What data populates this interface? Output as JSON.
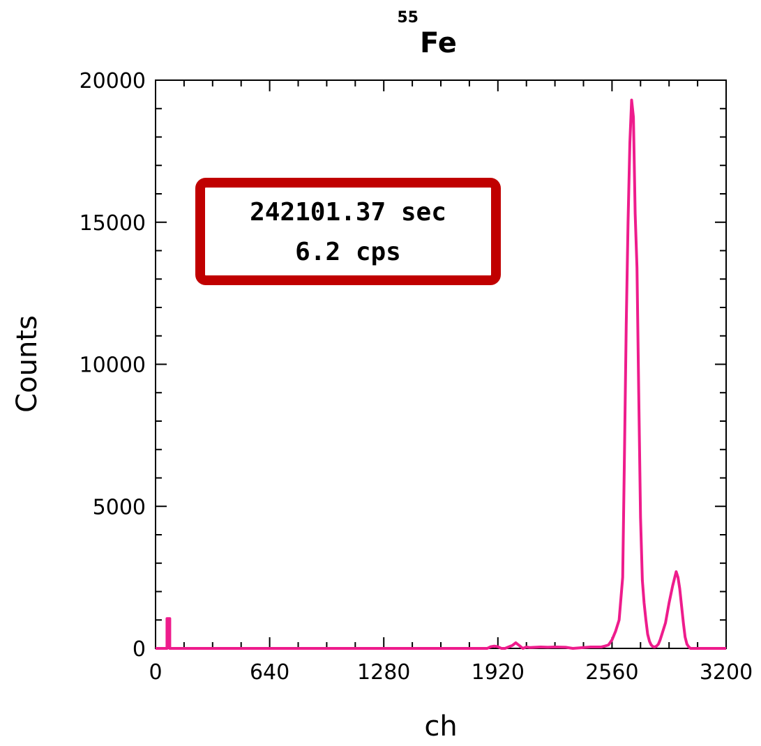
{
  "chart_data": {
    "type": "line",
    "title": {
      "superscript": "55",
      "main": "Fe"
    },
    "xlabel": "ch",
    "ylabel": "Counts",
    "xlim": [
      0,
      3200
    ],
    "ylim": [
      0,
      20000
    ],
    "x_ticks": [
      0,
      640,
      1280,
      1920,
      2560,
      3200
    ],
    "y_ticks": [
      0,
      5000,
      10000,
      15000,
      20000
    ],
    "x_tick_labels": [
      "0",
      "640",
      "1280",
      "1920",
      "2560",
      "3200"
    ],
    "y_tick_labels": [
      "0",
      "5000",
      "10000",
      "15000",
      "20000"
    ],
    "grid": false,
    "annotation": {
      "lines": [
        "242101.37 sec",
        "6.2 cps"
      ],
      "border_color": "#c00000"
    },
    "series": [
      {
        "color": "#ee1c8c",
        "x": [
          0,
          64,
          64,
          80,
          80,
          96,
          96,
          1860,
          1880,
          1900,
          1920,
          1940,
          1960,
          2000,
          2020,
          2040,
          2060,
          2080,
          2100,
          2160,
          2200,
          2240,
          2300,
          2340,
          2440,
          2500,
          2520,
          2540,
          2560,
          2580,
          2600,
          2620,
          2630,
          2640,
          2650,
          2660,
          2670,
          2680,
          2690,
          2700,
          2710,
          2720,
          2730,
          2740,
          2750,
          2760,
          2770,
          2780,
          2790,
          2800,
          2810,
          2820,
          2830,
          2840,
          2860,
          2880,
          2900,
          2920,
          2930,
          2940,
          2950,
          2960,
          2970,
          2980,
          2990,
          3000,
          3010,
          3020,
          3030,
          3040,
          3060,
          3100,
          3200
        ],
        "y": [
          0,
          0,
          1050,
          1050,
          0,
          0,
          0,
          0,
          60,
          80,
          60,
          0,
          0,
          100,
          200,
          100,
          0,
          50,
          30,
          50,
          40,
          50,
          40,
          0,
          50,
          50,
          80,
          120,
          300,
          600,
          1000,
          2500,
          6900,
          11400,
          15000,
          17800,
          19300,
          18700,
          15300,
          13400,
          9000,
          4600,
          2400,
          1600,
          1000,
          500,
          250,
          120,
          60,
          50,
          80,
          150,
          300,
          500,
          900,
          1600,
          2200,
          2700,
          2500,
          2100,
          1500,
          900,
          400,
          150,
          60,
          0,
          0,
          0,
          0,
          0,
          0,
          0,
          0
        ]
      }
    ]
  }
}
